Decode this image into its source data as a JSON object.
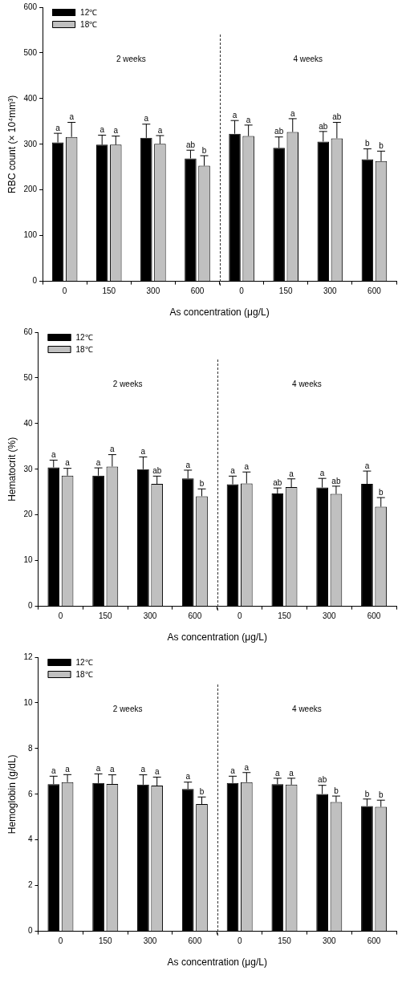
{
  "chart_data": [
    {
      "type": "bar",
      "ylabel": "RBC count (× 10⁴mm³)",
      "xlabel": "As concentration (μg/L)",
      "categories": [
        "0",
        "150",
        "300",
        "600",
        "0",
        "150",
        "300",
        "600"
      ],
      "ylim": [
        0,
        600
      ],
      "yticks": [
        0,
        100,
        200,
        300,
        400,
        500,
        600
      ],
      "grid": false,
      "legend": "top left",
      "annotations": [
        "2 weeks",
        "4 weeks"
      ],
      "series": [
        {
          "name": "12℃",
          "color": "#000000",
          "values": [
            304,
            299,
            314,
            269,
            323,
            292,
            306,
            267
          ],
          "errors": [
            [
              304,
              324
            ],
            [
              299,
              320
            ],
            [
              314,
              344
            ],
            [
              269,
              287
            ],
            [
              323,
              352
            ],
            [
              292,
              316
            ],
            [
              306,
              328
            ],
            [
              267,
              290
            ]
          ],
          "value_labels": [
            "a",
            "a",
            "a",
            "ab",
            "a",
            "ab",
            "ab",
            "b"
          ]
        },
        {
          "name": "18℃",
          "color": "#c0c0c0",
          "values": [
            316,
            299,
            301,
            253,
            318,
            327,
            313,
            263
          ],
          "errors": [
            [
              316,
              348
            ],
            [
              299,
              318
            ],
            [
              301,
              319
            ],
            [
              253,
              275
            ],
            [
              318,
              342
            ],
            [
              327,
              356
            ],
            [
              313,
              348
            ],
            [
              263,
              285
            ]
          ],
          "value_labels": [
            "a",
            "a",
            "a",
            "b",
            "a",
            "a",
            "ab",
            "b"
          ]
        }
      ]
    },
    {
      "type": "bar",
      "ylabel": "Hematocrit (%)",
      "xlabel": "As concentration (μg/L)",
      "categories": [
        "0",
        "150",
        "300",
        "600",
        "0",
        "150",
        "300",
        "600"
      ],
      "ylim": [
        0,
        60
      ],
      "yticks": [
        0,
        10,
        20,
        30,
        40,
        50,
        60
      ],
      "grid": false,
      "legend": "top left",
      "annotations": [
        "2 weeks",
        "4 weeks"
      ],
      "series": [
        {
          "name": "12℃",
          "color": "#000000",
          "values": [
            30.4,
            28.6,
            30.0,
            28.0,
            26.7,
            24.7,
            26.0,
            26.8
          ],
          "errors": [
            [
              30.4,
              32.0
            ],
            [
              28.6,
              30.3
            ],
            [
              30.0,
              32.7
            ],
            [
              28.0,
              29.8
            ],
            [
              26.7,
              28.5
            ],
            [
              24.7,
              25.9
            ],
            [
              26.0,
              28.0
            ],
            [
              26.8,
              29.6
            ]
          ],
          "value_labels": [
            "a",
            "a",
            "a",
            "a",
            "a",
            "ab",
            "a",
            "a"
          ]
        },
        {
          "name": "18℃",
          "color": "#c0c0c0",
          "values": [
            28.6,
            30.6,
            26.8,
            24.1,
            26.9,
            26.1,
            24.6,
            21.8
          ],
          "errors": [
            [
              28.6,
              30.2
            ],
            [
              30.6,
              33.2
            ],
            [
              26.8,
              28.5
            ],
            [
              24.1,
              25.7
            ],
            [
              26.9,
              29.4
            ],
            [
              26.1,
              27.9
            ],
            [
              24.6,
              26.3
            ],
            [
              21.8,
              23.8
            ]
          ],
          "value_labels": [
            "a",
            "a",
            "ab",
            "b",
            "a",
            "a",
            "ab",
            "b"
          ]
        }
      ]
    },
    {
      "type": "bar",
      "ylabel": "Hemoglobin (g/dL)",
      "xlabel": "As concentration (μg/L)",
      "categories": [
        "0",
        "150",
        "300",
        "600",
        "0",
        "150",
        "300",
        "600"
      ],
      "ylim": [
        0,
        12
      ],
      "yticks": [
        0,
        2,
        4,
        6,
        8,
        10,
        12
      ],
      "grid": false,
      "legend": "top left",
      "annotations": [
        "2 weeks",
        "4 weeks"
      ],
      "series": [
        {
          "name": "12℃",
          "color": "#000000",
          "values": [
            6.44,
            6.49,
            6.42,
            6.23,
            6.49,
            6.44,
            6.01,
            5.48
          ],
          "errors": [
            [
              6.44,
              6.79
            ],
            [
              6.49,
              6.89
            ],
            [
              6.42,
              6.85
            ],
            [
              6.23,
              6.53
            ],
            [
              6.49,
              6.79
            ],
            [
              6.44,
              6.7
            ],
            [
              6.01,
              6.39
            ],
            [
              5.48,
              5.79
            ]
          ],
          "value_labels": [
            "a",
            "a",
            "a",
            "a",
            "a",
            "a",
            "ab",
            "b"
          ]
        },
        {
          "name": "18℃",
          "color": "#c0c0c0",
          "values": [
            6.53,
            6.45,
            6.38,
            5.57,
            6.53,
            6.42,
            5.66,
            5.45
          ],
          "errors": [
            [
              6.53,
              6.86
            ],
            [
              6.45,
              6.85
            ],
            [
              6.38,
              6.75
            ],
            [
              5.57,
              5.88
            ],
            [
              6.53,
              6.95
            ],
            [
              6.42,
              6.7
            ],
            [
              5.66,
              5.92
            ],
            [
              5.45,
              5.74
            ]
          ],
          "value_labels": [
            "a",
            "a",
            "a",
            "b",
            "a",
            "a",
            "b",
            "b"
          ]
        }
      ]
    }
  ]
}
